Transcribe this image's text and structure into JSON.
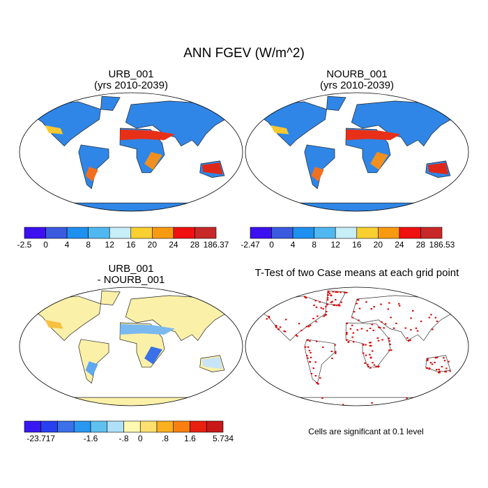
{
  "title": "ANN FGEV (W/m^2)",
  "panels": [
    {
      "title": "URB_001",
      "subtitle": "(yrs 2010-2039)",
      "colorbar": {
        "colors": [
          "#3c10f0",
          "#3a5ae0",
          "#1e90f0",
          "#50b8f0",
          "#c8eef8",
          "#f8d030",
          "#f89a10",
          "#f01010",
          "#c82828"
        ],
        "labels": [
          "-2.5",
          "0",
          "4",
          "8",
          "12",
          "16",
          "20",
          "24",
          "28",
          "186.37"
        ]
      }
    },
    {
      "title": "NOURB_001",
      "subtitle": "(yrs 2010-2039)",
      "colorbar": {
        "colors": [
          "#3c10f0",
          "#3a5ae0",
          "#1e90f0",
          "#50b8f0",
          "#c8eef8",
          "#f8d030",
          "#f89a10",
          "#f01010",
          "#c82828"
        ],
        "labels": [
          "-2.47",
          "0",
          "4",
          "8",
          "12",
          "16",
          "20",
          "24",
          "28",
          "186.53"
        ]
      }
    },
    {
      "title": "URB_001",
      "subtitle": "- NOURB_001",
      "colorbar": {
        "colors": [
          "#3818f0",
          "#2840f0",
          "#3a70e8",
          "#2a98f0",
          "#60c0f0",
          "#b0e0f8",
          "#fff8b0",
          "#fce070",
          "#fbb020",
          "#f88010",
          "#e82010",
          "#c81818"
        ],
        "labels": [
          "-23.717",
          "-1.6",
          "-.8",
          "0",
          ".8",
          "1.6",
          "5.734"
        ]
      }
    },
    {
      "title": "T-Test of two Case means at each grid point",
      "note": "Cells are significant at 0.1 level"
    }
  ]
}
